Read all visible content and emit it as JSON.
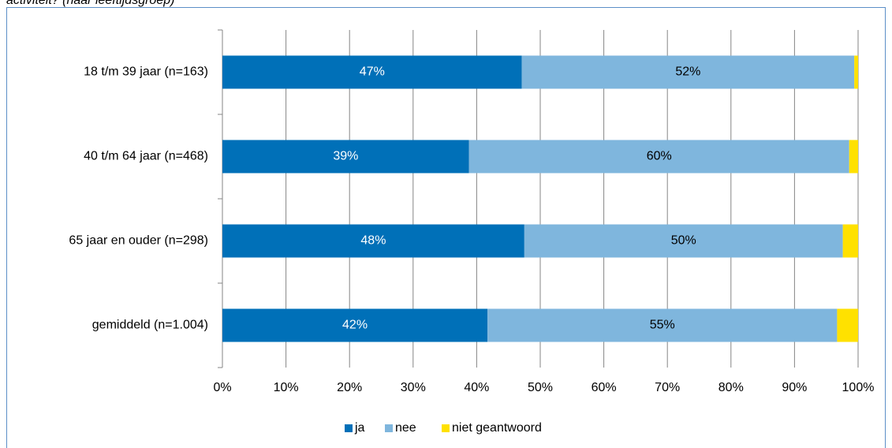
{
  "chart_data": {
    "type": "stacked-bar-horizontal",
    "title": "activiteit? (naar leeftijdsgroep)",
    "categories": [
      "18 t/m 39 jaar (n=163)",
      "40 t/m 64 jaar (n=468)",
      "65 jaar en ouder (n=298)",
      "gemiddeld (n=1.004)"
    ],
    "series": [
      {
        "name": "ja",
        "color": "#0070b8",
        "values": [
          47.1,
          38.8,
          47.5,
          41.7
        ],
        "value_labels": [
          "47%",
          "39%",
          "48%",
          "42%"
        ]
      },
      {
        "name": "nee",
        "color": "#7fb6dd",
        "values": [
          52.3,
          59.8,
          50.1,
          55.0
        ],
        "value_labels": [
          "52%",
          "60%",
          "50%",
          "55%"
        ]
      },
      {
        "name": "niet geantwoord",
        "color": "#ffe100",
        "values": [
          0.6,
          1.4,
          2.4,
          3.3
        ]
      }
    ],
    "xlim": [
      0,
      100
    ],
    "xticks": [
      {
        "value": 0,
        "label": "0%"
      },
      {
        "value": 10,
        "label": "10%"
      },
      {
        "value": 20,
        "label": "20%"
      },
      {
        "value": 30,
        "label": "30%"
      },
      {
        "value": 40,
        "label": "40%"
      },
      {
        "value": 50,
        "label": "50%"
      },
      {
        "value": 60,
        "label": "60%"
      },
      {
        "value": 70,
        "label": "70%"
      },
      {
        "value": 80,
        "label": "80%"
      },
      {
        "value": 90,
        "label": "90%"
      },
      {
        "value": 100,
        "label": "100%"
      }
    ],
    "grid": true,
    "legend": "bottom"
  }
}
